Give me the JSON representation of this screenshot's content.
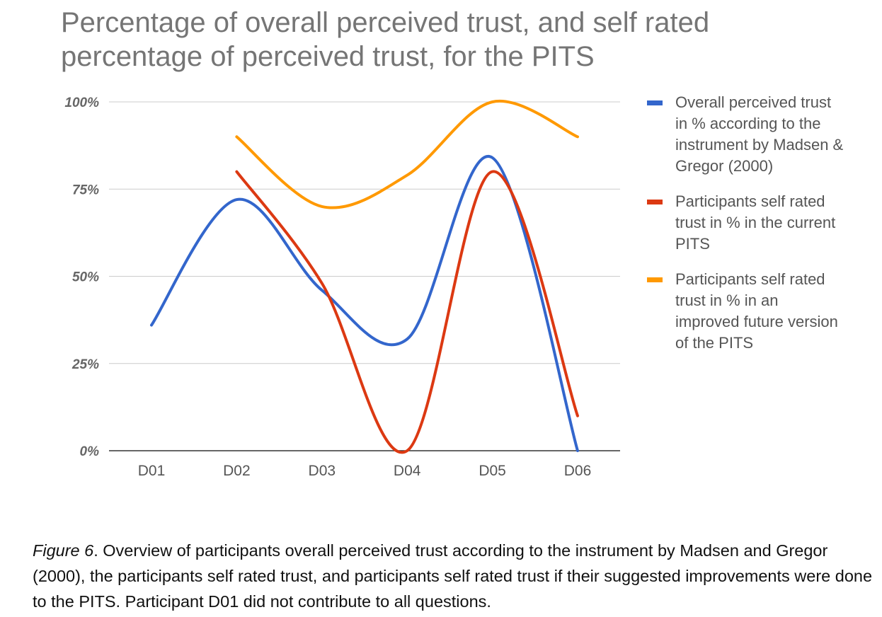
{
  "chart_data": {
    "type": "line",
    "title": "Percentage of overall perceived trust, and self rated percentage of perceived trust, for the PITS",
    "title_lines": [
      "Percentage of overall perceived trust, and self rated",
      "percentage of perceived trust, for the PITS"
    ],
    "categories": [
      "D01",
      "D02",
      "D03",
      "D04",
      "D05",
      "D06"
    ],
    "y_ticks": [
      "0%",
      "25%",
      "50%",
      "75%",
      "100%"
    ],
    "ylim": [
      0,
      100
    ],
    "grid": true,
    "legend_position": "right",
    "series": [
      {
        "name": "Overall perceived trust in % according to the instrument by Madsen & Gregor (2000)",
        "legend_lines": [
          "Overall perceived trust",
          "in % according to the",
          "instrument by Madsen &",
          "Gregor (2000)"
        ],
        "color": "#3366cc",
        "values": [
          36,
          72,
          46,
          32,
          84,
          0
        ]
      },
      {
        "name": "Participants self rated trust in % in the current PITS",
        "legend_lines": [
          "Participants self rated",
          "trust in % in the current",
          "PITS"
        ],
        "color": "#dc3912",
        "values": [
          null,
          80,
          48,
          0,
          80,
          10
        ]
      },
      {
        "name": "Participants self rated trust in % in an improved future version of the PITS",
        "legend_lines": [
          "Participants self rated",
          "trust in % in an",
          "improved future version",
          "of the PITS"
        ],
        "color": "#ff9900",
        "values": [
          null,
          90,
          70,
          79,
          100,
          90
        ]
      }
    ]
  },
  "caption": {
    "label": "Figure 6",
    "text": ". Overview of participants overall perceived trust according to the instrument by Madsen and Gregor (2000), the participants self rated trust, and participants self rated trust if their suggested improvements were done to the PITS. Participant D01 did not contribute to all questions."
  }
}
